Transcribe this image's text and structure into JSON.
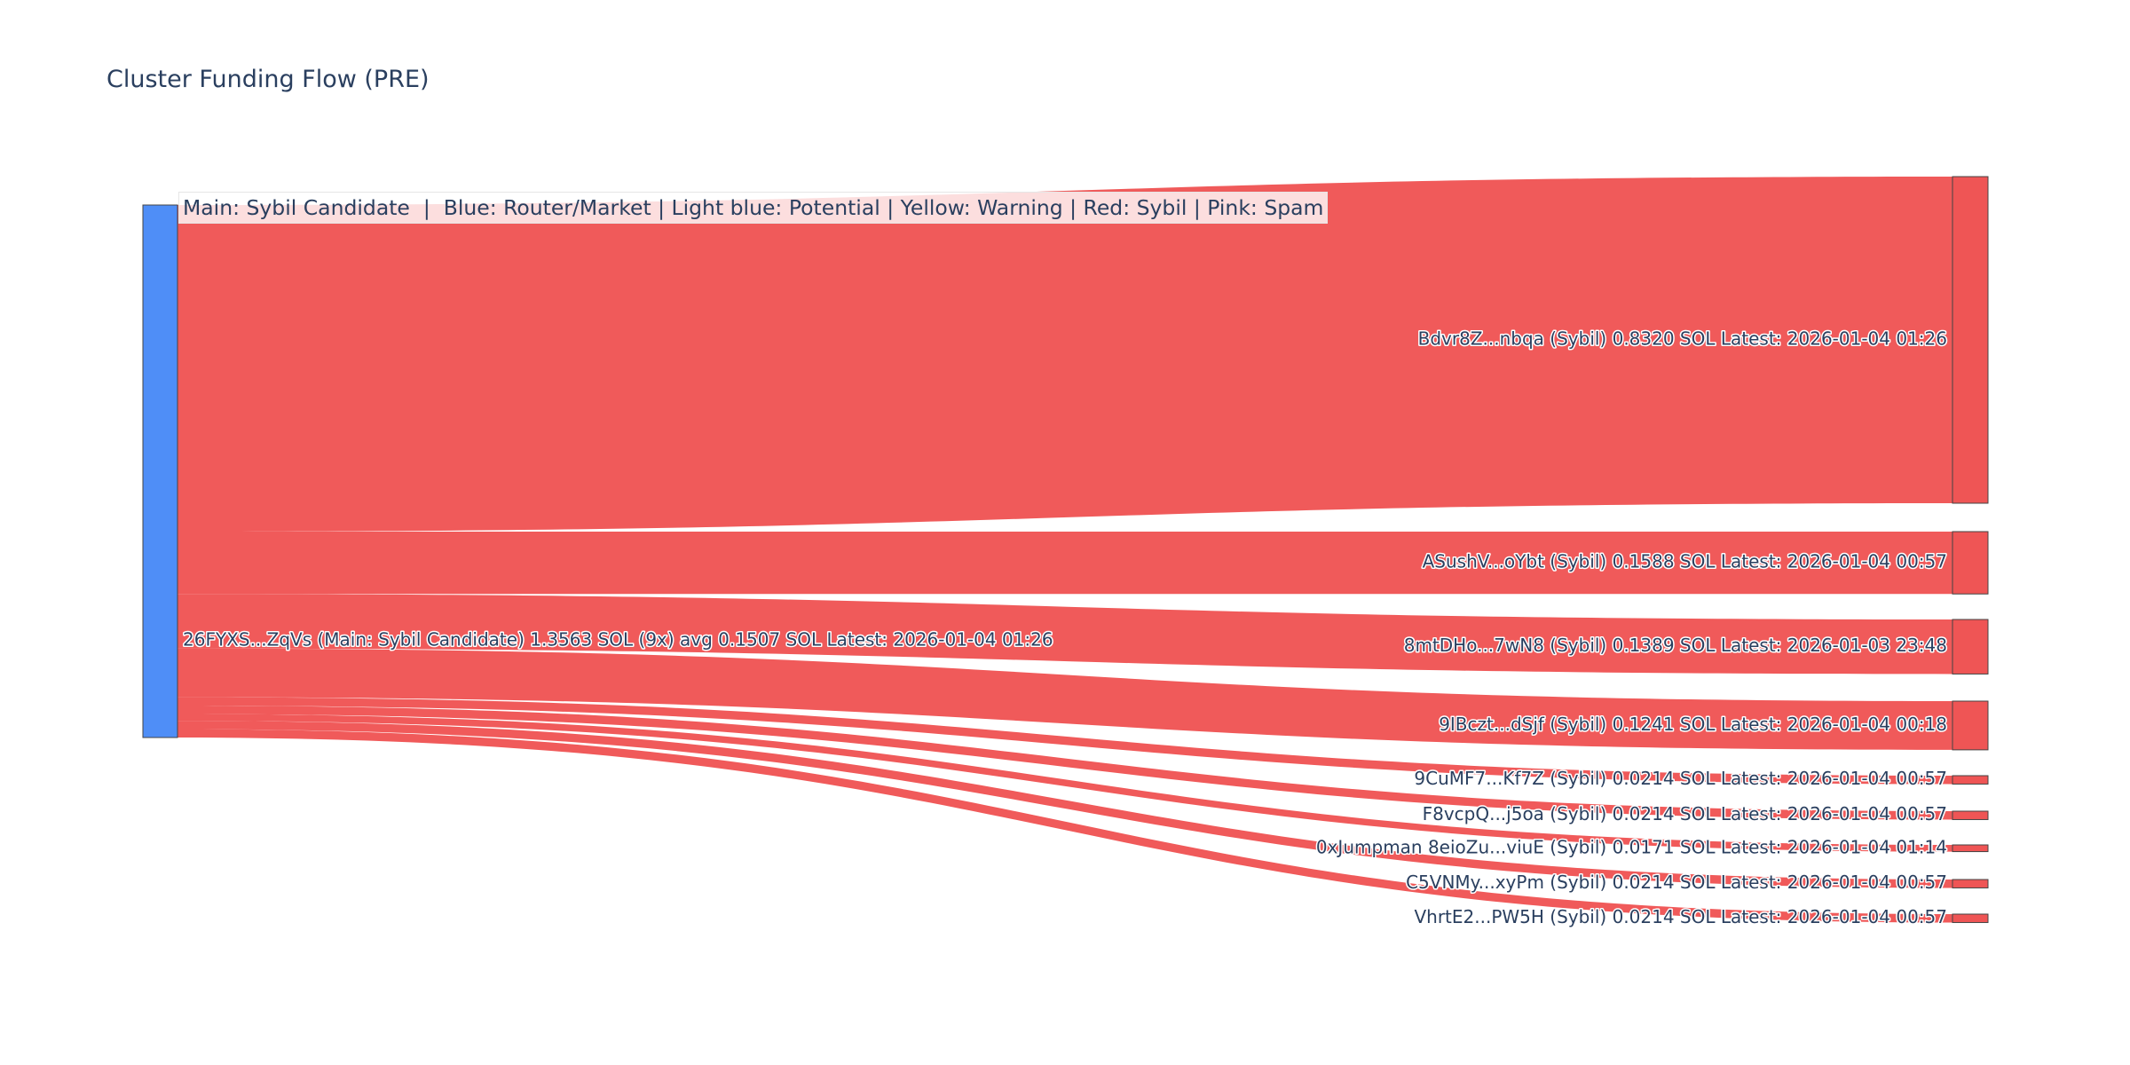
{
  "chart_data": {
    "type": "sankey",
    "title": "Cluster Funding Flow (PRE)",
    "annotation": "Main: Sybil Candidate  |  Blue: Router/Market | Light blue: Potential | Yellow: Warning | Red: Sybil | Pink: Spam",
    "colors": {
      "main": "#4F8EF7",
      "sybil": "#EF5555",
      "link": "#EF5555",
      "node_border": "#444444"
    },
    "nodes": [
      {
        "id": "src",
        "label": "26FYXS...ZqVs (Main: Sybil Candidate) 1.3563 SOL (9x) avg 0.1507 SOL Latest: 2026-01-04 01:26",
        "category": "main"
      },
      {
        "id": "n1",
        "label": "Bdvr8Z...nbqa (Sybil) 0.8320 SOL Latest: 2026-01-04 01:26",
        "category": "sybil"
      },
      {
        "id": "n2",
        "label": "ASushV...oYbt (Sybil) 0.1588 SOL Latest: 2026-01-04 00:57",
        "category": "sybil"
      },
      {
        "id": "n3",
        "label": "8mtDHo...7wN8 (Sybil) 0.1389 SOL Latest: 2026-01-03 23:48",
        "category": "sybil"
      },
      {
        "id": "n4",
        "label": "9IBczt...dSjf (Sybil) 0.1241 SOL Latest: 2026-01-04 00:18",
        "category": "sybil"
      },
      {
        "id": "n5",
        "label": "9CuMF7...Kf7Z (Sybil) 0.0214 SOL Latest: 2026-01-04 00:57",
        "category": "sybil"
      },
      {
        "id": "n6",
        "label": "F8vcpQ...j5oa (Sybil) 0.0214 SOL Latest: 2026-01-04 00:57",
        "category": "sybil"
      },
      {
        "id": "n7",
        "label": "0xJumpman 8eioZu...viuE (Sybil) 0.0171 SOL Latest: 2026-01-04 01:14",
        "category": "sybil"
      },
      {
        "id": "n8",
        "label": "C5VNMy...xyPm (Sybil) 0.0214 SOL Latest: 2026-01-04 00:57",
        "category": "sybil"
      },
      {
        "id": "n9",
        "label": "VhrtE2...PW5H (Sybil) 0.0214 SOL Latest: 2026-01-04 00:57",
        "category": "sybil"
      }
    ],
    "links": [
      {
        "source": "src",
        "target": "n1",
        "value": 0.832
      },
      {
        "source": "src",
        "target": "n2",
        "value": 0.1588
      },
      {
        "source": "src",
        "target": "n3",
        "value": 0.1389
      },
      {
        "source": "src",
        "target": "n4",
        "value": 0.1241
      },
      {
        "source": "src",
        "target": "n5",
        "value": 0.0214
      },
      {
        "source": "src",
        "target": "n6",
        "value": 0.0214
      },
      {
        "source": "src",
        "target": "n7",
        "value": 0.0171
      },
      {
        "source": "src",
        "target": "n8",
        "value": 0.0214
      },
      {
        "source": "src",
        "target": "n9",
        "value": 0.0214
      }
    ]
  }
}
